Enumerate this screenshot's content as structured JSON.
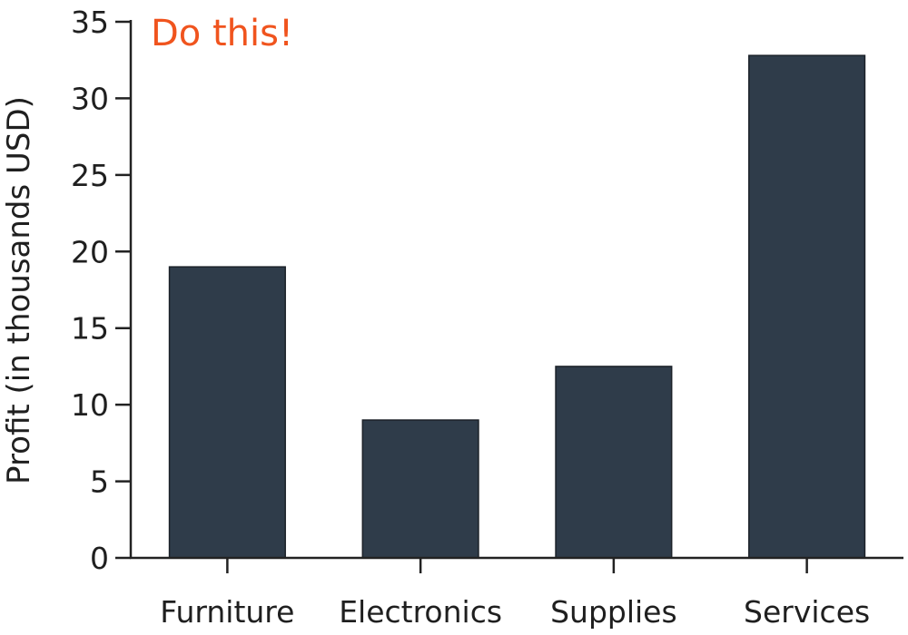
{
  "chart_data": {
    "type": "bar",
    "categories": [
      "Furniture",
      "Electronics",
      "Supplies",
      "Services"
    ],
    "values": [
      19,
      9,
      12.5,
      32.8
    ],
    "title": "",
    "xlabel": "",
    "ylabel": "Profit (in thousands USD)",
    "ylim": [
      0,
      35
    ],
    "yticks": [
      0,
      5,
      10,
      15,
      20,
      25,
      30,
      35
    ],
    "grid": false,
    "annotation": "Do this!",
    "colors": {
      "bar": "#2f3c4a",
      "annotation": "#f0541e",
      "text": "#1f1f1f",
      "axis": "#222222"
    }
  }
}
